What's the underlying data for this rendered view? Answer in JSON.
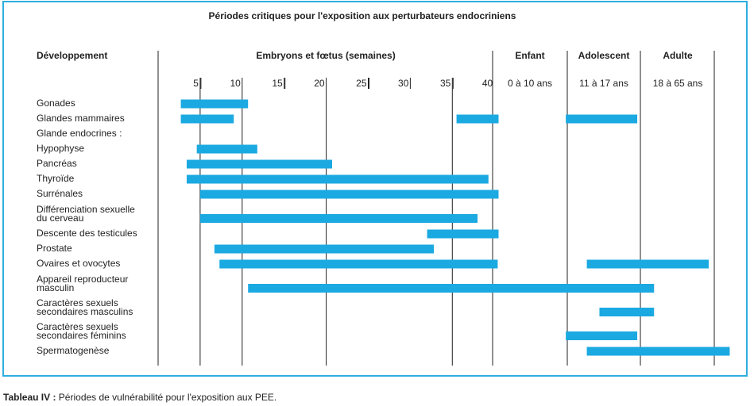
{
  "chart_data": {
    "type": "bar",
    "title": "Périodes critiques pour l'exposition aux perturbateurs endocriniens",
    "row_header": "Développement",
    "column_groups": [
      {
        "label": "Embryons et fœtus (semaines)"
      },
      {
        "label": "Enfant",
        "sublabel": "0 à 10 ans"
      },
      {
        "label": "Adolescent",
        "sublabel": "11 à 17 ans"
      },
      {
        "label": "Adulte",
        "sublabel": "18 à 65 ans"
      }
    ],
    "week_ticks": [
      5,
      10,
      15,
      20,
      25,
      30,
      35,
      40
    ],
    "bar_color": "#1ba9e1",
    "rows": [
      {
        "label": [
          "Gonades"
        ],
        "bars": [
          [
            2.7,
            10.7
          ]
        ]
      },
      {
        "label": [
          "Glandes mammaires"
        ],
        "bars": [
          [
            2.7,
            9.0
          ],
          [
            35.5,
            40.5
          ],
          [
            48.5,
            57.0
          ]
        ]
      },
      {
        "label": [
          "Glande endocrines :"
        ],
        "bars": []
      },
      {
        "label": [
          "Hypophyse"
        ],
        "bars": [
          [
            4.6,
            11.8
          ]
        ]
      },
      {
        "label": [
          "Pancréas"
        ],
        "bars": [
          [
            3.4,
            20.7
          ]
        ]
      },
      {
        "label": [
          "Thyroïde"
        ],
        "bars": [
          [
            3.4,
            39.3
          ]
        ]
      },
      {
        "label": [
          "Surrénales"
        ],
        "bars": [
          [
            5.0,
            40.5
          ]
        ]
      },
      {
        "label": [
          "Différenciation sexuelle",
          "du cerveau"
        ],
        "bars": [
          [
            5.0,
            38.0
          ]
        ]
      },
      {
        "label": [
          "Descente des testicules"
        ],
        "bars": [
          [
            32.0,
            40.5
          ]
        ]
      },
      {
        "label": [
          "Prostate"
        ],
        "bars": [
          [
            6.7,
            32.8
          ]
        ]
      },
      {
        "label": [
          "Ovaires et ovocytes"
        ],
        "bars": [
          [
            7.3,
            40.4
          ],
          [
            51.0,
            65.5
          ]
        ]
      },
      {
        "label": [
          "Appareil reproducteur",
          "masculin"
        ],
        "bars": [
          [
            10.7,
            59.0
          ]
        ]
      },
      {
        "label": [
          "Caractères sexuels",
          "secondaires masculins"
        ],
        "bars": [
          [
            52.5,
            59.0
          ]
        ]
      },
      {
        "label": [
          "Caractères sexuels",
          "secondaires féminins"
        ],
        "bars": [
          [
            48.5,
            57.0
          ]
        ]
      },
      {
        "label": [
          "Spermatogenèse"
        ],
        "bars": [
          [
            51.0,
            68.0
          ]
        ]
      }
    ]
  },
  "caption": {
    "prefix": "Tableau IV :",
    "text": " Périodes de vulnérabilité pour l'exposition aux PEE."
  }
}
